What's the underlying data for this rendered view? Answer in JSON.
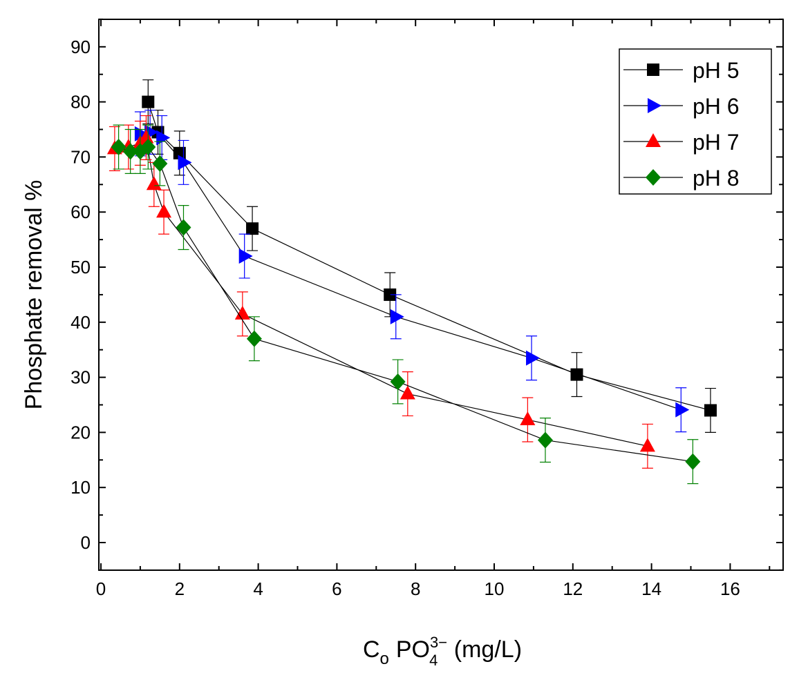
{
  "chart_data": {
    "type": "scatter",
    "title": "",
    "xlabel": {
      "base": "C",
      "sub": "o",
      "species": "PO",
      "species_sub": "4",
      "species_sup": "3−",
      "unit": " (mg/L)"
    },
    "ylabel": "Phosphate removal %",
    "xlim": [
      0,
      17.5
    ],
    "ylim": [
      -5,
      95
    ],
    "xticks": [
      0,
      2,
      4,
      6,
      8,
      10,
      12,
      14,
      16
    ],
    "yticks": [
      0,
      10,
      20,
      30,
      40,
      50,
      60,
      70,
      80,
      90
    ],
    "legend_position": "top-right",
    "grid": false,
    "series": [
      {
        "name": "pH 5",
        "marker": "square",
        "color": "#000000",
        "x": [
          1.2,
          1.45,
          2.0,
          3.85,
          7.35,
          12.1,
          15.5
        ],
        "y": [
          80,
          74.5,
          70.7,
          57,
          45,
          30.5,
          24
        ],
        "err": [
          4,
          4,
          4,
          4,
          4,
          4,
          4
        ]
      },
      {
        "name": "pH 6",
        "marker": "triangle-right",
        "color": "#0000ff",
        "x": [
          1.0,
          1.25,
          1.55,
          2.1,
          3.65,
          7.5,
          10.95,
          14.75
        ],
        "y": [
          74.2,
          74.5,
          73.5,
          69,
          52,
          41,
          33.5,
          24.1
        ],
        "err": [
          4,
          4,
          4,
          4,
          4,
          4,
          4,
          4
        ]
      },
      {
        "name": "pH 7",
        "marker": "triangle-up",
        "color": "#ff0000",
        "x": [
          0.35,
          0.7,
          1.0,
          1.15,
          1.35,
          1.6,
          3.6,
          7.8,
          10.85,
          13.9
        ],
        "y": [
          71.5,
          71.8,
          72.5,
          73.5,
          65,
          60,
          41.5,
          27,
          22.3,
          17.5
        ],
        "err": [
          4,
          4,
          4,
          4,
          4,
          4,
          4,
          4,
          4,
          4
        ]
      },
      {
        "name": "pH 8",
        "marker": "diamond",
        "color": "#008000",
        "x": [
          0.45,
          0.75,
          1.0,
          1.2,
          1.5,
          2.1,
          3.9,
          7.55,
          11.3,
          15.05
        ],
        "y": [
          71.8,
          71.0,
          71.0,
          71.8,
          68.8,
          57.2,
          37,
          29.2,
          18.6,
          14.7
        ],
        "err": [
          4,
          4,
          4,
          4,
          4,
          4,
          4,
          4,
          4,
          4
        ]
      }
    ]
  }
}
